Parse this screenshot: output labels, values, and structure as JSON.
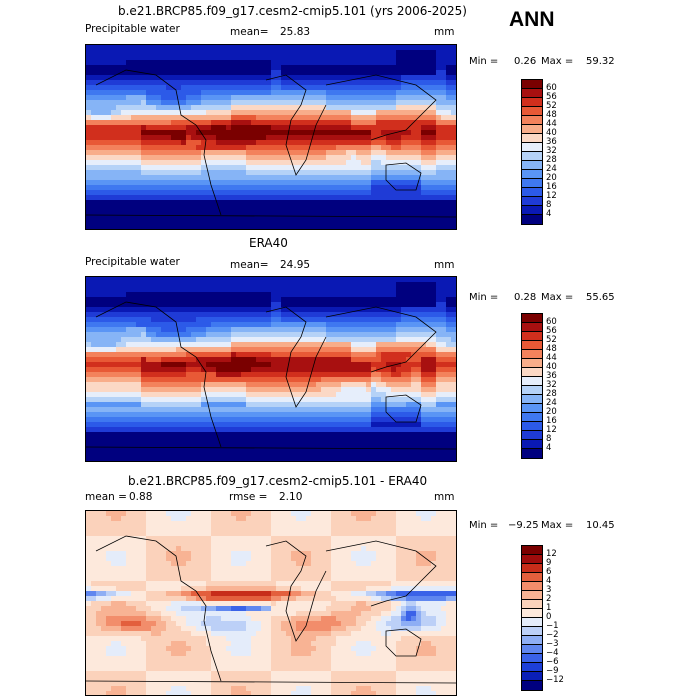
{
  "season": "ANN",
  "panels": [
    {
      "title": "b.e21.BRCP85.f09_g17.cesm2-cmip5.101 (yrs 2006-2025)",
      "variable": "Precipitable water",
      "stat1_label": "mean=",
      "stat1_value": "25.83",
      "stat2_label": "",
      "stat2_value": "",
      "units": "mm",
      "min_label": "Min =",
      "min_value": "0.26",
      "max_label": "Max =",
      "max_value": "59.32",
      "colorbar_levels": [
        "4",
        "8",
        "12",
        "16",
        "20",
        "24",
        "28",
        "32",
        "36",
        "40",
        "44",
        "48",
        "52",
        "56",
        "60"
      ],
      "colorbar_colors": [
        "#00007f",
        "#0a19b4",
        "#1f3bd6",
        "#2c5ae8",
        "#3f78f0",
        "#5a95f5",
        "#86b4f6",
        "#b5d2f7",
        "#e6eefb",
        "#fbd8c5",
        "#f8ad8a",
        "#f3825c",
        "#e85936",
        "#d12f1d",
        "#a81010",
        "#7a0000"
      ],
      "field": "pw_model"
    },
    {
      "title": "ERA40",
      "variable": "Precipitable water",
      "stat1_label": "mean=",
      "stat1_value": "24.95",
      "stat2_label": "",
      "stat2_value": "",
      "units": "mm",
      "min_label": "Min =",
      "min_value": "0.28",
      "max_label": "Max =",
      "max_value": "55.65",
      "colorbar_levels": [
        "4",
        "8",
        "12",
        "16",
        "20",
        "24",
        "28",
        "32",
        "36",
        "40",
        "44",
        "48",
        "52",
        "56",
        "60"
      ],
      "colorbar_colors": [
        "#00007f",
        "#0a19b4",
        "#1f3bd6",
        "#2c5ae8",
        "#3f78f0",
        "#5a95f5",
        "#86b4f6",
        "#b5d2f7",
        "#e6eefb",
        "#fbd8c5",
        "#f8ad8a",
        "#f3825c",
        "#e85936",
        "#d12f1d",
        "#a81010",
        "#7a0000"
      ],
      "field": "pw_obs"
    },
    {
      "title": "b.e21.BRCP85.f09_g17.cesm2-cmip5.101 - ERA40",
      "variable": "",
      "stat1_label": "mean =",
      "stat1_value": "0.88",
      "stat2_label": "rmse =",
      "stat2_value": "2.10",
      "units": "mm",
      "min_label": "Min =",
      "min_value": "−9.25",
      "max_label": "Max =",
      "max_value": "10.45",
      "colorbar_levels": [
        "−12",
        "−9",
        "−6",
        "−4",
        "−3",
        "−2",
        "−1",
        "0",
        "1",
        "2",
        "3",
        "4",
        "6",
        "9",
        "12"
      ],
      "colorbar_colors": [
        "#00007f",
        "#0a1fb8",
        "#1d3fd8",
        "#3a62e8",
        "#5f86ef",
        "#8eaef4",
        "#bcd0f7",
        "#e4ecfa",
        "#fde9dc",
        "#fbd2bb",
        "#f8b394",
        "#f28d6b",
        "#e35f3d",
        "#c72d1a",
        "#9e0c0c",
        "#7a0000"
      ],
      "field": "pw_diff"
    }
  ]
}
